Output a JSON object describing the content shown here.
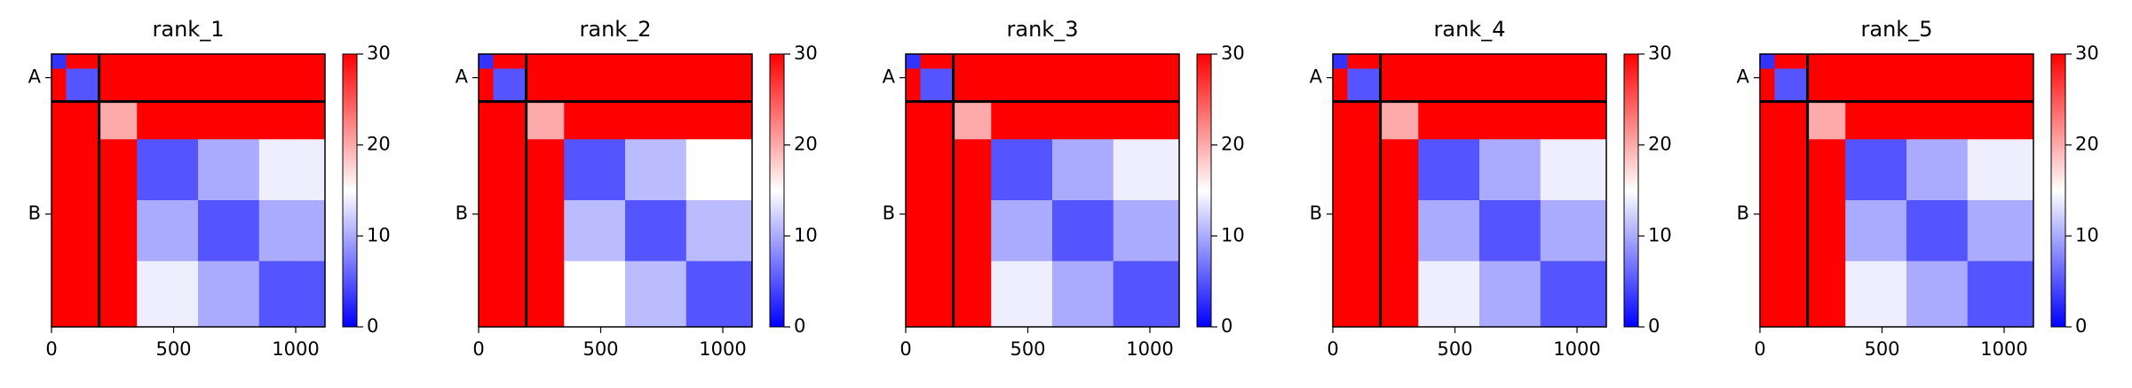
{
  "chart_data": [
    {
      "type": "heatmap",
      "title": "rank_1",
      "x_edges": [
        0,
        60,
        195,
        350,
        600,
        850,
        1120
      ],
      "y_edges": [
        0,
        60,
        195,
        350,
        600,
        850,
        1120
      ],
      "z": [
        [
          3,
          30,
          30,
          30,
          30,
          30
        ],
        [
          30,
          5,
          30,
          30,
          30,
          30
        ],
        [
          30,
          30,
          20,
          30,
          30,
          30
        ],
        [
          30,
          30,
          30,
          5,
          10,
          14
        ],
        [
          30,
          30,
          30,
          10,
          5,
          10
        ],
        [
          30,
          30,
          30,
          14,
          10,
          5
        ]
      ],
      "xlim": [
        0,
        1120
      ],
      "ylim": [
        1120,
        0
      ],
      "xticks": [
        0,
        500,
        1000
      ],
      "yticks": [
        {
          "value": 97,
          "label": "A"
        },
        {
          "value": 657,
          "label": "B"
        }
      ],
      "colormap": "bwr",
      "clim": [
        0,
        30
      ],
      "cticks": [
        0,
        10,
        20,
        30
      ],
      "chain_breaks": [
        195
      ]
    },
    {
      "type": "heatmap",
      "title": "rank_2",
      "x_edges": [
        0,
        60,
        195,
        350,
        600,
        850,
        1120
      ],
      "y_edges": [
        0,
        60,
        195,
        350,
        600,
        850,
        1120
      ],
      "z": [
        [
          3,
          30,
          30,
          30,
          30,
          30
        ],
        [
          30,
          5,
          30,
          30,
          30,
          30
        ],
        [
          30,
          30,
          20,
          30,
          30,
          30
        ],
        [
          30,
          30,
          30,
          5,
          11,
          15
        ],
        [
          30,
          30,
          30,
          11,
          5,
          11
        ],
        [
          30,
          30,
          30,
          15,
          11,
          5
        ]
      ],
      "xlim": [
        0,
        1120
      ],
      "ylim": [
        1120,
        0
      ],
      "xticks": [
        0,
        500,
        1000
      ],
      "yticks": [
        {
          "value": 97,
          "label": "A"
        },
        {
          "value": 657,
          "label": "B"
        }
      ],
      "colormap": "bwr",
      "clim": [
        0,
        30
      ],
      "cticks": [
        0,
        10,
        20,
        30
      ],
      "chain_breaks": [
        195
      ]
    },
    {
      "type": "heatmap",
      "title": "rank_3",
      "x_edges": [
        0,
        60,
        195,
        350,
        600,
        850,
        1120
      ],
      "y_edges": [
        0,
        60,
        195,
        350,
        600,
        850,
        1120
      ],
      "z": [
        [
          3,
          30,
          30,
          30,
          30,
          30
        ],
        [
          30,
          5,
          30,
          30,
          30,
          30
        ],
        [
          30,
          30,
          20,
          30,
          30,
          30
        ],
        [
          30,
          30,
          30,
          5,
          10,
          14
        ],
        [
          30,
          30,
          30,
          10,
          5,
          10
        ],
        [
          30,
          30,
          30,
          14,
          10,
          5
        ]
      ],
      "xlim": [
        0,
        1120
      ],
      "ylim": [
        1120,
        0
      ],
      "xticks": [
        0,
        500,
        1000
      ],
      "yticks": [
        {
          "value": 97,
          "label": "A"
        },
        {
          "value": 657,
          "label": "B"
        }
      ],
      "colormap": "bwr",
      "clim": [
        0,
        30
      ],
      "cticks": [
        0,
        10,
        20,
        30
      ],
      "chain_breaks": [
        195
      ]
    },
    {
      "type": "heatmap",
      "title": "rank_4",
      "x_edges": [
        0,
        60,
        195,
        350,
        600,
        850,
        1120
      ],
      "y_edges": [
        0,
        60,
        195,
        350,
        600,
        850,
        1120
      ],
      "z": [
        [
          3,
          30,
          30,
          30,
          30,
          30
        ],
        [
          30,
          5,
          30,
          30,
          30,
          30
        ],
        [
          30,
          30,
          20,
          30,
          30,
          30
        ],
        [
          30,
          30,
          30,
          5,
          10,
          14
        ],
        [
          30,
          30,
          30,
          10,
          5,
          10
        ],
        [
          30,
          30,
          30,
          14,
          10,
          5
        ]
      ],
      "xlim": [
        0,
        1120
      ],
      "ylim": [
        1120,
        0
      ],
      "xticks": [
        0,
        500,
        1000
      ],
      "yticks": [
        {
          "value": 97,
          "label": "A"
        },
        {
          "value": 657,
          "label": "B"
        }
      ],
      "colormap": "bwr",
      "clim": [
        0,
        30
      ],
      "cticks": [
        0,
        10,
        20,
        30
      ],
      "chain_breaks": [
        195
      ]
    },
    {
      "type": "heatmap",
      "title": "rank_5",
      "x_edges": [
        0,
        60,
        195,
        350,
        600,
        850,
        1120
      ],
      "y_edges": [
        0,
        60,
        195,
        350,
        600,
        850,
        1120
      ],
      "z": [
        [
          3,
          30,
          30,
          30,
          30,
          30
        ],
        [
          30,
          5,
          30,
          30,
          30,
          30
        ],
        [
          30,
          30,
          20,
          30,
          30,
          30
        ],
        [
          30,
          30,
          30,
          5,
          10,
          14
        ],
        [
          30,
          30,
          30,
          10,
          5,
          10
        ],
        [
          30,
          30,
          30,
          14,
          10,
          5
        ]
      ],
      "xlim": [
        0,
        1120
      ],
      "ylim": [
        1120,
        0
      ],
      "xticks": [
        0,
        500,
        1000
      ],
      "yticks": [
        {
          "value": 97,
          "label": "A"
        },
        {
          "value": 657,
          "label": "B"
        }
      ],
      "colormap": "bwr",
      "clim": [
        0,
        30
      ],
      "cticks": [
        0,
        10,
        20,
        30
      ],
      "chain_breaks": [
        195
      ]
    }
  ]
}
